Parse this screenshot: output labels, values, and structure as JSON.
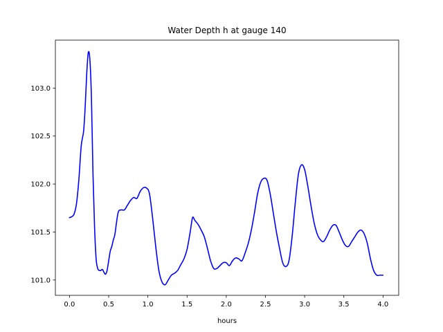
{
  "chart_data": {
    "type": "line",
    "title": "Water Depth h at gauge 140",
    "xlabel": "hours",
    "ylabel": "",
    "xlim": [
      -0.18,
      4.2
    ],
    "ylim": [
      100.84,
      103.5
    ],
    "xticks": [
      0.0,
      0.5,
      1.0,
      1.5,
      2.0,
      2.5,
      3.0,
      3.5,
      4.0
    ],
    "xtick_labels": [
      "0.0",
      "0.5",
      "1.0",
      "1.5",
      "2.0",
      "2.5",
      "3.0",
      "3.5",
      "4.0"
    ],
    "yticks": [
      101.0,
      101.5,
      102.0,
      102.5,
      103.0
    ],
    "ytick_labels": [
      "101.0",
      "101.5",
      "102.0",
      "102.5",
      "103.0"
    ],
    "grid": false,
    "series": [
      {
        "color": "#0000ff",
        "x": [
          0.0,
          0.03,
          0.06,
          0.09,
          0.12,
          0.15,
          0.18,
          0.2,
          0.22,
          0.24,
          0.26,
          0.28,
          0.3,
          0.32,
          0.34,
          0.36,
          0.38,
          0.4,
          0.42,
          0.44,
          0.46,
          0.48,
          0.5,
          0.52,
          0.54,
          0.56,
          0.58,
          0.62,
          0.66,
          0.7,
          0.74,
          0.78,
          0.82,
          0.86,
          0.9,
          0.94,
          0.98,
          1.02,
          1.06,
          1.1,
          1.14,
          1.18,
          1.22,
          1.26,
          1.3,
          1.34,
          1.38,
          1.42,
          1.46,
          1.5,
          1.54,
          1.57,
          1.6,
          1.64,
          1.68,
          1.72,
          1.76,
          1.8,
          1.84,
          1.88,
          1.92,
          1.96,
          2.0,
          2.04,
          2.08,
          2.12,
          2.16,
          2.2,
          2.24,
          2.28,
          2.32,
          2.36,
          2.4,
          2.44,
          2.48,
          2.52,
          2.56,
          2.6,
          2.64,
          2.68,
          2.72,
          2.76,
          2.8,
          2.84,
          2.88,
          2.92,
          2.96,
          3.0,
          3.04,
          3.08,
          3.12,
          3.16,
          3.2,
          3.24,
          3.28,
          3.32,
          3.36,
          3.4,
          3.44,
          3.48,
          3.52,
          3.56,
          3.6,
          3.64,
          3.68,
          3.72,
          3.76,
          3.8,
          3.84,
          3.88,
          3.92,
          3.96,
          4.0
        ],
        "y": [
          101.65,
          101.66,
          101.69,
          101.8,
          102.05,
          102.4,
          102.55,
          102.8,
          103.15,
          103.37,
          103.3,
          102.9,
          102.1,
          101.55,
          101.22,
          101.12,
          101.1,
          101.1,
          101.11,
          101.08,
          101.06,
          101.1,
          101.2,
          101.3,
          101.35,
          101.42,
          101.48,
          101.7,
          101.73,
          101.73,
          101.78,
          101.83,
          101.86,
          101.85,
          101.92,
          101.96,
          101.96,
          101.9,
          101.65,
          101.35,
          101.1,
          100.98,
          100.95,
          101.0,
          101.05,
          101.07,
          101.1,
          101.16,
          101.22,
          101.32,
          101.5,
          101.65,
          101.62,
          101.58,
          101.52,
          101.45,
          101.33,
          101.2,
          101.12,
          101.12,
          101.15,
          101.18,
          101.18,
          101.15,
          101.2,
          101.23,
          101.22,
          101.2,
          101.28,
          101.38,
          101.52,
          101.7,
          101.9,
          102.02,
          102.06,
          102.04,
          101.9,
          101.7,
          101.5,
          101.33,
          101.18,
          101.14,
          101.2,
          101.45,
          101.8,
          102.1,
          102.2,
          102.15,
          101.98,
          101.78,
          101.6,
          101.48,
          101.42,
          101.4,
          101.45,
          101.52,
          101.57,
          101.57,
          101.5,
          101.42,
          101.36,
          101.35,
          101.4,
          101.45,
          101.5,
          101.52,
          101.48,
          101.38,
          101.22,
          101.1,
          101.05,
          101.05,
          101.05
        ]
      }
    ]
  }
}
